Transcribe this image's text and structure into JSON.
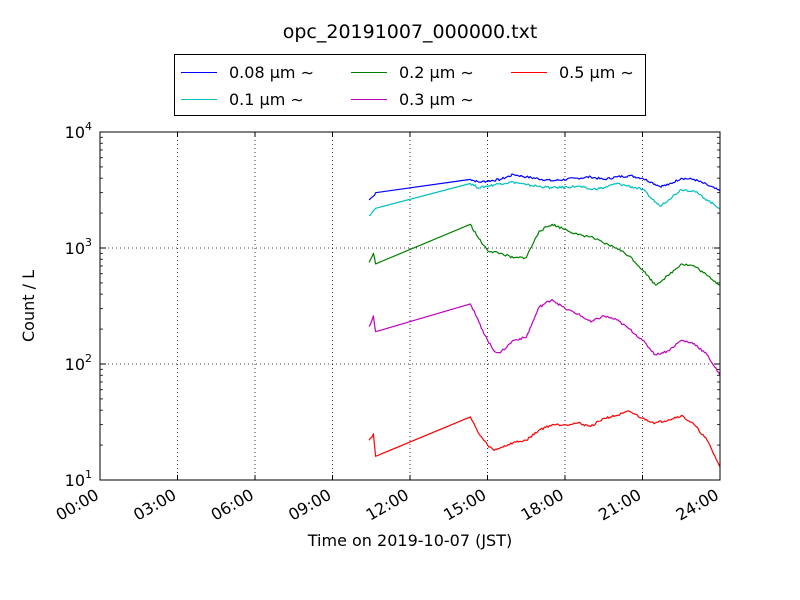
{
  "chart_data": {
    "type": "line",
    "title": "opc_20191007_000000.txt",
    "xlabel": "Time on 2019-10-07 (JST)",
    "ylabel": "Count / L",
    "yscale": "log",
    "xlim": [
      "00:00",
      "24:00"
    ],
    "ylim": [
      10,
      10000
    ],
    "x_ticks": [
      "00:00",
      "03:00",
      "06:00",
      "09:00",
      "12:00",
      "15:00",
      "18:00",
      "21:00",
      "24:00"
    ],
    "y_ticks": [
      {
        "base": "10",
        "exp": "1"
      },
      {
        "base": "10",
        "exp": "2"
      },
      {
        "base": "10",
        "exp": "3"
      },
      {
        "base": "10",
        "exp": "4"
      }
    ],
    "grid": true,
    "legend_position": "top",
    "series": [
      {
        "name": "0.08 μm ∼",
        "color": "#0000ff",
        "x": [
          "10:25",
          "10:35",
          "10:40",
          "14:20",
          "14:40",
          "15:30",
          "16:00",
          "16:30",
          "17:30",
          "18:30",
          "19:00",
          "19:30",
          "20:00",
          "20:30",
          "21:00",
          "21:20",
          "21:40",
          "22:00",
          "22:30",
          "23:00",
          "23:30",
          "24:00"
        ],
        "y": [
          2600,
          2800,
          3000,
          3900,
          3700,
          3900,
          4300,
          4100,
          3800,
          4000,
          4100,
          3900,
          4100,
          4200,
          4000,
          3700,
          3400,
          3500,
          4000,
          3900,
          3500,
          3100
        ]
      },
      {
        "name": "0.1 μm ∼",
        "color": "#00bfbf",
        "x": [
          "10:25",
          "10:35",
          "10:40",
          "14:20",
          "14:40",
          "15:30",
          "16:00",
          "16:30",
          "17:30",
          "18:30",
          "19:00",
          "19:30",
          "20:00",
          "20:30",
          "21:00",
          "21:20",
          "21:40",
          "22:00",
          "22:30",
          "23:00",
          "23:30",
          "24:00"
        ],
        "y": [
          1900,
          2100,
          2200,
          3600,
          3300,
          3600,
          3700,
          3500,
          3300,
          3400,
          3200,
          3300,
          3600,
          3400,
          3200,
          2700,
          2300,
          2600,
          3200,
          3100,
          2600,
          2200
        ]
      },
      {
        "name": "0.2 μm ∼",
        "color": "#008000",
        "x": [
          "10:25",
          "10:35",
          "10:40",
          "14:20",
          "14:40",
          "15:00",
          "15:30",
          "16:00",
          "16:30",
          "17:00",
          "17:30",
          "18:00",
          "18:30",
          "19:00",
          "19:30",
          "20:00",
          "20:30",
          "21:00",
          "21:30",
          "22:00",
          "22:30",
          "23:00",
          "23:30",
          "24:00"
        ],
        "y": [
          750,
          900,
          730,
          1600,
          1200,
          950,
          900,
          820,
          830,
          1400,
          1600,
          1450,
          1300,
          1250,
          1100,
          1000,
          850,
          650,
          480,
          580,
          730,
          700,
          580,
          480
        ]
      },
      {
        "name": "0.3 μm ∼",
        "color": "#bf00bf",
        "x": [
          "10:25",
          "10:35",
          "10:40",
          "14:20",
          "14:40",
          "15:00",
          "15:15",
          "15:30",
          "16:00",
          "16:30",
          "17:00",
          "17:30",
          "18:00",
          "18:30",
          "19:00",
          "19:30",
          "20:00",
          "20:30",
          "21:00",
          "21:30",
          "22:00",
          "22:30",
          "23:00",
          "23:30",
          "24:00"
        ],
        "y": [
          210,
          260,
          190,
          330,
          230,
          160,
          130,
          125,
          160,
          170,
          310,
          360,
          300,
          270,
          230,
          260,
          240,
          200,
          160,
          120,
          130,
          160,
          150,
          120,
          80
        ]
      },
      {
        "name": "0.5 μm ∼",
        "color": "#ff0000",
        "x": [
          "10:25",
          "10:35",
          "10:40",
          "14:20",
          "14:40",
          "15:00",
          "15:15",
          "15:30",
          "16:00",
          "16:30",
          "17:00",
          "17:30",
          "18:00",
          "18:30",
          "19:00",
          "19:30",
          "20:00",
          "20:30",
          "21:00",
          "21:30",
          "22:00",
          "22:30",
          "23:00",
          "23:30",
          "24:00"
        ],
        "y": [
          22,
          25,
          16,
          35,
          25,
          20,
          18,
          19,
          21,
          22,
          27,
          30,
          30,
          31,
          29,
          34,
          36,
          39,
          34,
          31,
          33,
          36,
          30,
          22,
          13
        ]
      }
    ]
  }
}
